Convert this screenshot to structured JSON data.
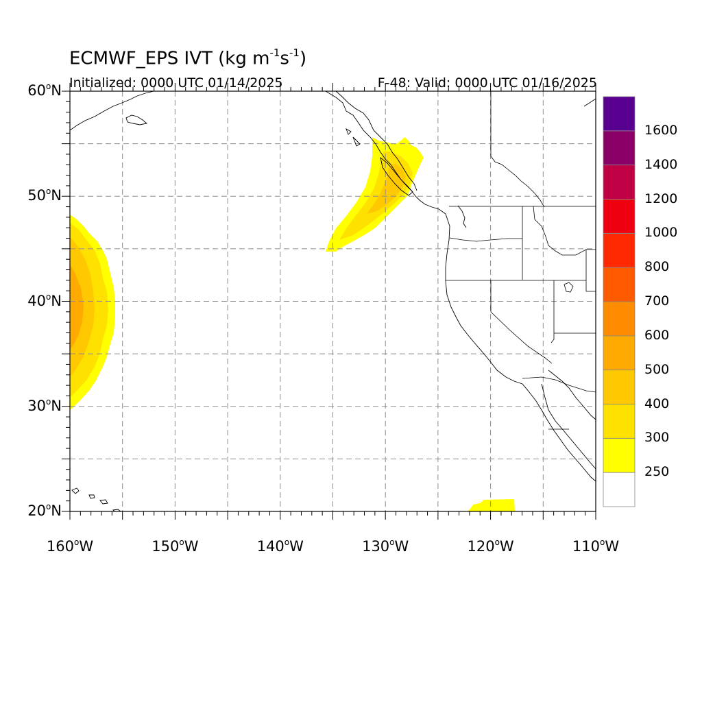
{
  "title": {
    "main": "ECMWF_EPS IVT (kg m",
    "exp1": "-1",
    "mid": "s",
    "exp2": "-1",
    "close": ")"
  },
  "subtitle": {
    "left": "Initialized: 0000 UTC 01/14/2025",
    "right": "F-48: Valid: 0000 UTC 01/16/2025"
  },
  "axes": {
    "lon_range": [
      -160,
      -110
    ],
    "lat_range": [
      20,
      60
    ],
    "x_ticks": [
      {
        "value": -160,
        "label": "160",
        "hemi": "W"
      },
      {
        "value": -150,
        "label": "150",
        "hemi": "W"
      },
      {
        "value": -140,
        "label": "140",
        "hemi": "W"
      },
      {
        "value": -130,
        "label": "130",
        "hemi": "W"
      },
      {
        "value": -120,
        "label": "120",
        "hemi": "W"
      },
      {
        "value": -110,
        "label": "110",
        "hemi": "W"
      }
    ],
    "y_ticks": [
      {
        "value": 60,
        "label": "60",
        "hemi": "N"
      },
      {
        "value": 50,
        "label": "50",
        "hemi": "N"
      },
      {
        "value": 40,
        "label": "40",
        "hemi": "N"
      },
      {
        "value": 30,
        "label": "30",
        "hemi": "N"
      },
      {
        "value": 20,
        "label": "20",
        "hemi": "N"
      }
    ],
    "grid": "dashed every 5 degrees"
  },
  "colorbar": {
    "levels": [
      "250",
      "300",
      "400",
      "500",
      "600",
      "700",
      "800",
      "1000",
      "1200",
      "1400",
      "1600"
    ],
    "colors": [
      "#ffffff",
      "#ffff00",
      "#ffe100",
      "#ffc800",
      "#ffaa00",
      "#ff8c00",
      "#ff5a00",
      "#ff2800",
      "#ee0011",
      "#c00044",
      "#8a0066",
      "#5a0090"
    ]
  },
  "ivt_features": [
    {
      "name": "central-pacific-ar",
      "max_level": "500"
    },
    {
      "name": "pnw-ar",
      "max_level": "400"
    },
    {
      "name": "southwest-patch",
      "max_level": "250"
    }
  ]
}
